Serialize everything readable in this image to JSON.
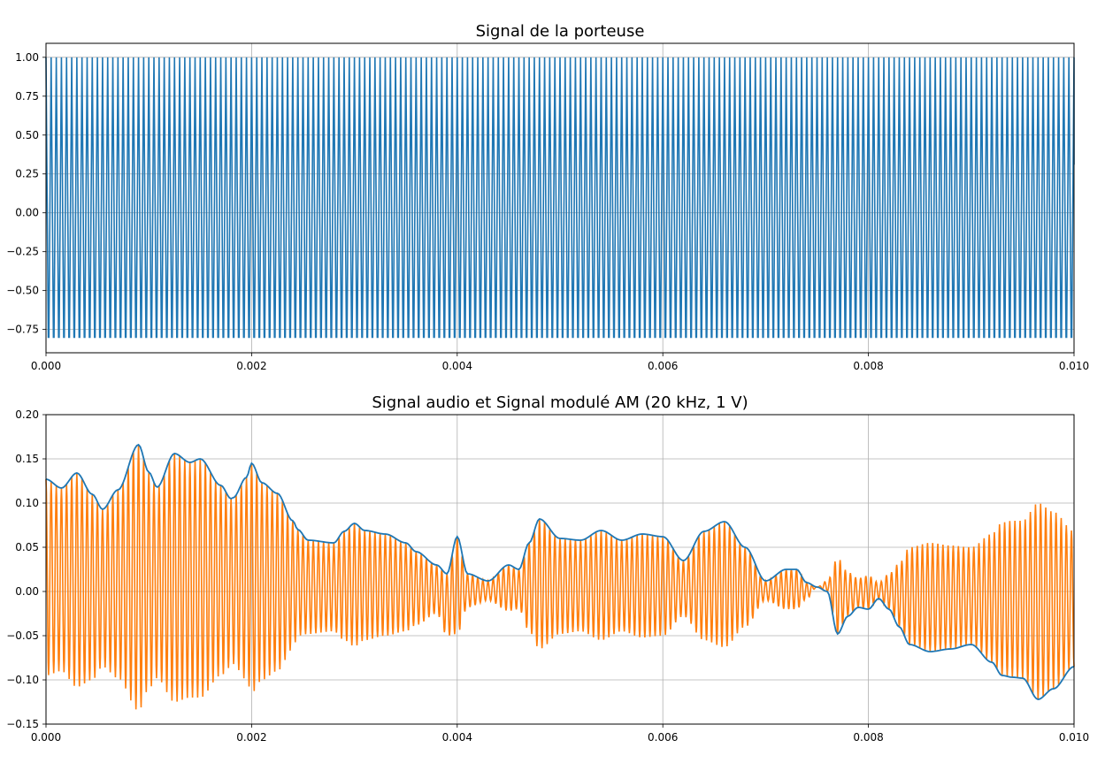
{
  "chart_data": [
    {
      "type": "line",
      "title": "Signal de la porteuse",
      "xlabel": "",
      "ylabel": "",
      "xlim": [
        0,
        0.01
      ],
      "ylim": [
        -0.9,
        1.09
      ],
      "grid": true,
      "x_ticks": [
        "0.000",
        "0.002",
        "0.004",
        "0.006",
        "0.008",
        "0.010"
      ],
      "y_ticks": [
        "−0.75",
        "−0.50",
        "−0.25",
        "0.00",
        "0.25",
        "0.50",
        "0.75",
        "1.00"
      ],
      "series": [
        {
          "color": "#1f77b4",
          "kind": "periodic",
          "frequency_hz": 20000,
          "max": 1.0,
          "min": -0.8,
          "x_start": 0,
          "x_end": 0.01,
          "end_value": 0.31
        }
      ]
    },
    {
      "type": "line",
      "title": "Signal audio et Signal modulé AM (20 kHz, 1 V)",
      "xlabel": "",
      "ylabel": "",
      "xlim": [
        0,
        0.01
      ],
      "ylim": [
        -0.15,
        0.2
      ],
      "grid": true,
      "x_ticks": [
        "0.000",
        "0.002",
        "0.004",
        "0.006",
        "0.008",
        "0.010"
      ],
      "y_ticks": [
        "−0.15",
        "−0.10",
        "−0.05",
        "0.00",
        "0.05",
        "0.10",
        "0.15",
        "0.20"
      ],
      "carrier_frequency_hz": 20000,
      "x": [
        0,
        0.00015,
        0.0003,
        0.00045,
        0.00055,
        0.0007,
        0.0009,
        0.001,
        0.00108,
        0.00125,
        0.0014,
        0.0015,
        0.0017,
        0.0018,
        0.00182,
        0.00195,
        0.002,
        0.0021,
        0.00225,
        0.0024,
        0.00245,
        0.00255,
        0.0028,
        0.0029,
        0.003,
        0.0031,
        0.0033,
        0.0035,
        0.0036,
        0.0038,
        0.0039,
        0.004,
        0.0041,
        0.0043,
        0.0045,
        0.0046,
        0.0047,
        0.0048,
        0.005,
        0.0052,
        0.0054,
        0.0056,
        0.0058,
        0.006,
        0.0062,
        0.0064,
        0.0066,
        0.0068,
        0.007,
        0.0072,
        0.0073,
        0.0074,
        0.0075,
        0.0076,
        0.0077,
        0.0078,
        0.0079,
        0.008,
        0.0081,
        0.0082,
        0.0083,
        0.0084,
        0.0086,
        0.0088,
        0.009,
        0.0092,
        0.0093,
        0.0094,
        0.0095,
        0.00965,
        0.0098,
        0.01
      ],
      "envelope_upper": [
        0.127,
        0.117,
        0.134,
        0.11,
        0.093,
        0.115,
        0.166,
        0.135,
        0.118,
        0.156,
        0.146,
        0.15,
        0.12,
        0.105,
        0.106,
        0.129,
        0.145,
        0.123,
        0.111,
        0.08,
        0.07,
        0.058,
        0.055,
        0.068,
        0.077,
        0.069,
        0.065,
        0.055,
        0.045,
        0.03,
        0.02,
        0.062,
        0.02,
        0.012,
        0.03,
        0.025,
        0.055,
        0.082,
        0.06,
        0.058,
        0.069,
        0.058,
        0.065,
        0.062,
        0.035,
        0.068,
        0.079,
        0.05,
        0.012,
        0.025,
        0.025,
        0.01,
        0.005,
        0.0,
        -0.048,
        -0.028,
        -0.018,
        -0.02,
        -0.008,
        -0.02,
        -0.04,
        -0.06,
        -0.068,
        -0.065,
        -0.06,
        -0.08,
        -0.095,
        -0.097,
        -0.098,
        -0.122,
        -0.11,
        -0.085
      ],
      "envelope_lower": [
        -0.095,
        -0.09,
        -0.108,
        -0.1,
        -0.085,
        -0.098,
        -0.135,
        -0.11,
        -0.098,
        -0.125,
        -0.12,
        -0.12,
        -0.095,
        -0.085,
        -0.082,
        -0.1,
        -0.115,
        -0.1,
        -0.09,
        -0.065,
        -0.05,
        -0.048,
        -0.045,
        -0.055,
        -0.062,
        -0.055,
        -0.05,
        -0.045,
        -0.038,
        -0.025,
        -0.05,
        -0.048,
        -0.018,
        -0.01,
        -0.022,
        -0.02,
        -0.045,
        -0.065,
        -0.048,
        -0.045,
        -0.055,
        -0.045,
        -0.052,
        -0.05,
        -0.028,
        -0.055,
        -0.063,
        -0.04,
        -0.01,
        -0.02,
        -0.02,
        -0.008,
        0.005,
        0.012,
        0.038,
        0.022,
        0.015,
        0.018,
        0.01,
        0.02,
        0.032,
        0.05,
        0.055,
        0.052,
        0.05,
        0.065,
        0.078,
        0.08,
        0.08,
        0.1,
        0.09,
        0.068
      ],
      "series": [
        {
          "color": "#1f77b4",
          "role": "audio",
          "follows": "envelope_upper"
        },
        {
          "color": "#ff7f0e",
          "role": "am",
          "between": [
            "envelope_upper",
            "envelope_lower"
          ]
        }
      ]
    }
  ]
}
